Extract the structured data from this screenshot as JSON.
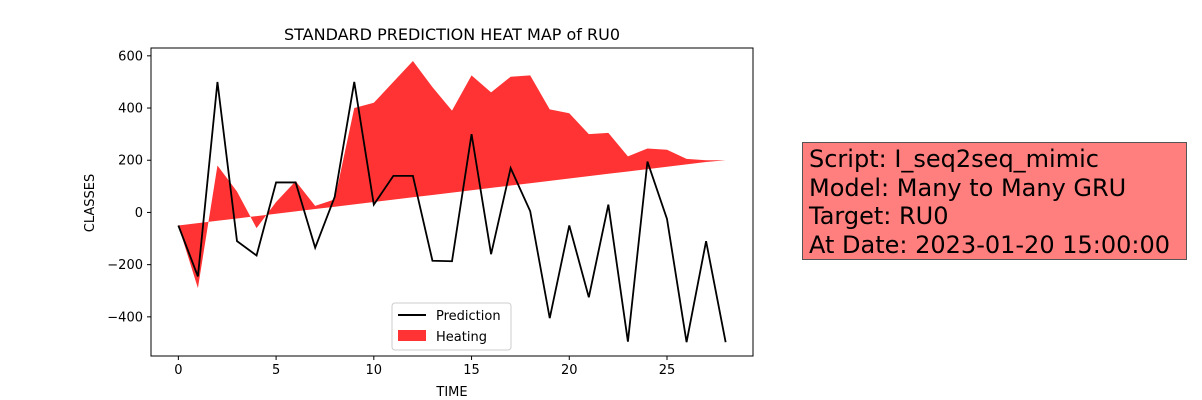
{
  "chart_data": {
    "type": "area",
    "title": "STANDARD PREDICTION HEAT MAP of RU0",
    "xlabel": "TIME",
    "ylabel": "CLASSES",
    "xlim": [
      -1.4,
      29.4
    ],
    "ylim": [
      -550,
      630
    ],
    "xticks": [
      0,
      5,
      10,
      15,
      20,
      25
    ],
    "yticks": [
      -400,
      -200,
      0,
      200,
      400,
      600
    ],
    "legend_position": "lower center",
    "series": [
      {
        "name": "Prediction",
        "kind": "line",
        "color": "#000000",
        "x": [
          0,
          1,
          2,
          3,
          4,
          5,
          6,
          7,
          8,
          9,
          10,
          11,
          12,
          13,
          14,
          15,
          16,
          17,
          18,
          19,
          20,
          21,
          22,
          23,
          24,
          25,
          26,
          27,
          28
        ],
        "values": [
          -50,
          -245,
          500,
          -110,
          -165,
          115,
          115,
          -135,
          60,
          500,
          30,
          140,
          140,
          -185,
          -187,
          300,
          -160,
          170,
          5,
          -405,
          -50,
          -325,
          30,
          -495,
          195,
          -25,
          -497,
          -110,
          -497
        ]
      },
      {
        "name": "Heating",
        "kind": "fill_between",
        "color": "#ff0000",
        "alpha": 0.8,
        "x": [
          0,
          1,
          2,
          3,
          4,
          5,
          6,
          7,
          8,
          9,
          10,
          11,
          12,
          13,
          14,
          15,
          16,
          17,
          18,
          19,
          20,
          21,
          22,
          23,
          24,
          25,
          26,
          27,
          28
        ],
        "y1": [
          -50,
          -290,
          180,
          80,
          -60,
          40,
          120,
          25,
          50,
          400,
          420,
          500,
          580,
          480,
          390,
          525,
          460,
          520,
          525,
          395,
          380,
          300,
          305,
          215,
          245,
          240,
          205,
          200,
          200
        ],
        "y2": [
          -50,
          -41,
          -32,
          -23,
          -14,
          -5,
          4,
          13,
          22,
          31,
          40,
          49,
          58,
          67,
          76,
          85,
          94,
          103,
          112,
          121,
          130,
          139,
          148,
          157,
          166,
          175,
          184,
          193,
          200
        ]
      }
    ]
  },
  "info_box": {
    "color": "#ff7f7f",
    "lines": [
      "Script: I_seq2seq_mimic",
      "Model: Many to Many GRU",
      "Target: RU0",
      "At Date: 2023-01-20 15:00:00"
    ]
  }
}
